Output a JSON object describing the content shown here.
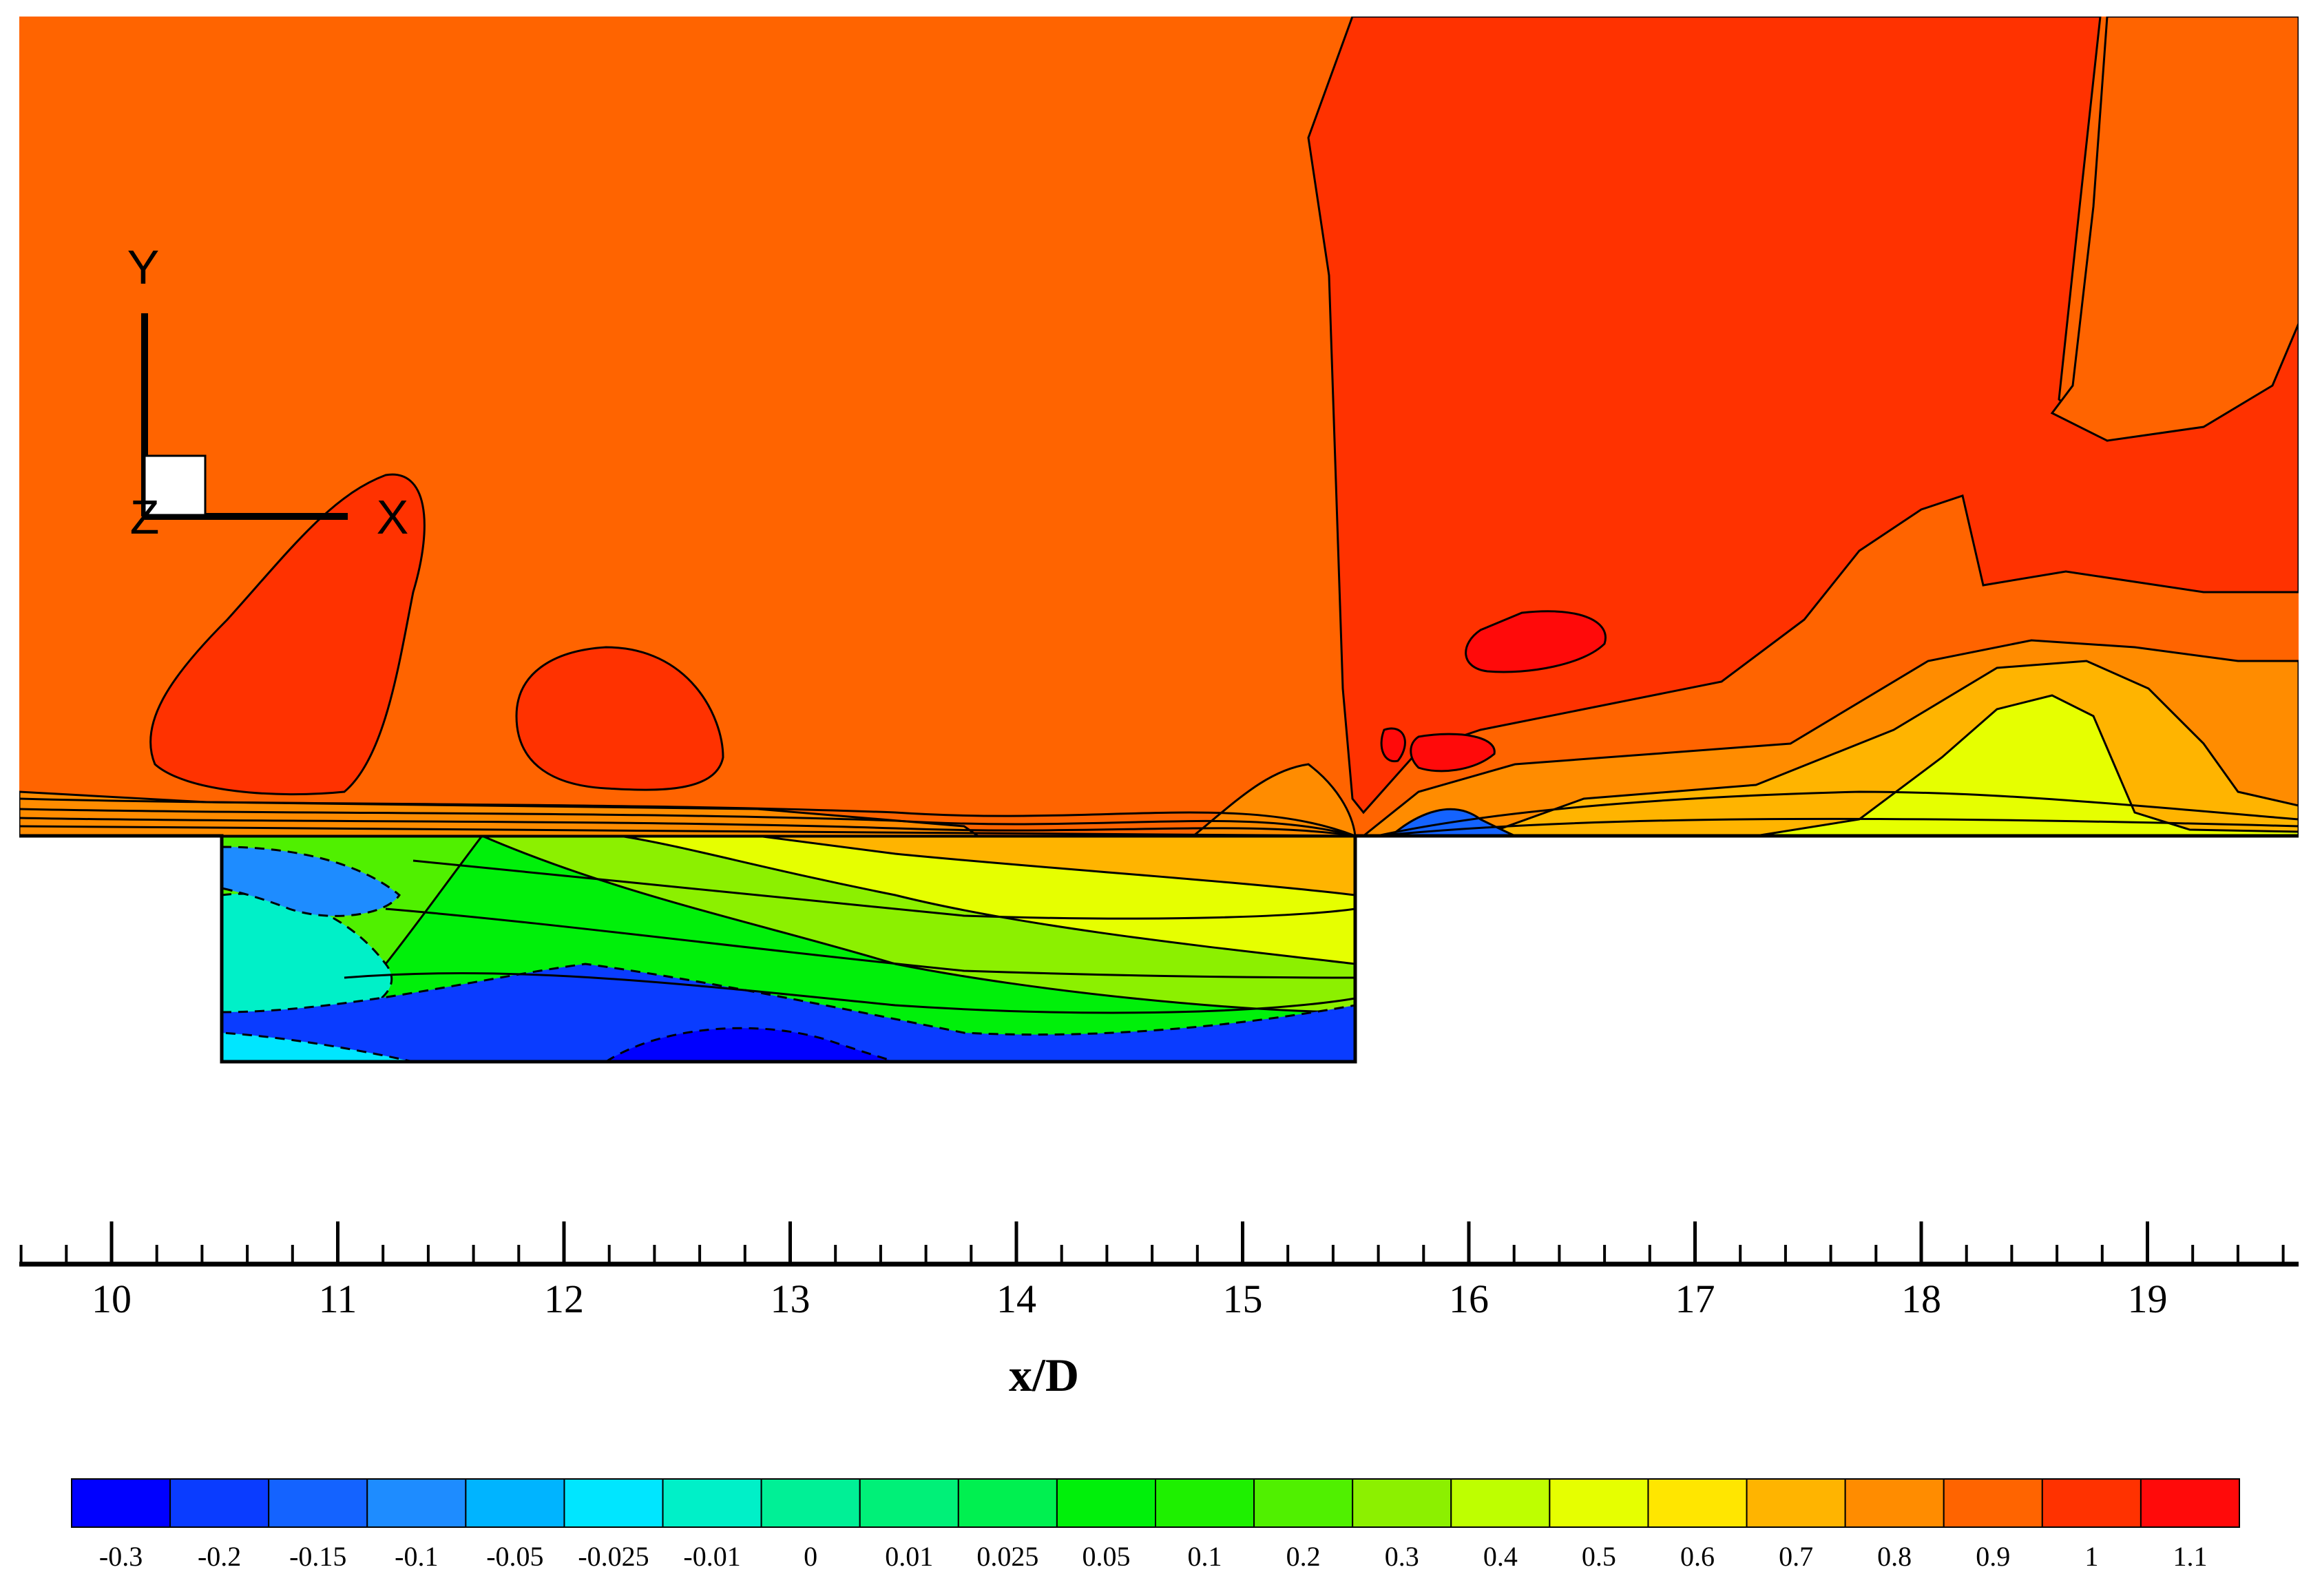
{
  "chart_data": {
    "type": "contour",
    "xlabel": "x/D",
    "xlim": [
      9.6,
      19.7
    ],
    "x_ticks": [
      10,
      11,
      12,
      13,
      14,
      15,
      16,
      17,
      18,
      19
    ],
    "cavity_x": [
      10.5,
      15.5
    ],
    "axes_triad": {
      "x_label": "X",
      "y_label": "Y",
      "z_label": "Z"
    },
    "colorbar": {
      "levels": [
        "-0.3",
        "-0.2",
        "-0.15",
        "-0.1",
        "-0.05",
        "-0.025",
        "-0.01",
        "0",
        "0.01",
        "0.025",
        "0.05",
        "0.1",
        "0.2",
        "0.3",
        "0.4",
        "0.5",
        "0.6",
        "0.7",
        "0.8",
        "0.9",
        "1",
        "1.1"
      ],
      "colors": [
        "#0000ff",
        "#0a3cff",
        "#1463ff",
        "#1e8cff",
        "#00b4ff",
        "#00e6ff",
        "#00f0c8",
        "#00f096",
        "#00f078",
        "#00f050",
        "#00f00a",
        "#1ef000",
        "#50f000",
        "#8cf000",
        "#beff00",
        "#e6ff00",
        "#ffe600",
        "#ffb400",
        "#ff8c00",
        "#ff6400",
        "#ff3200",
        "#ff0a0a"
      ]
    }
  }
}
